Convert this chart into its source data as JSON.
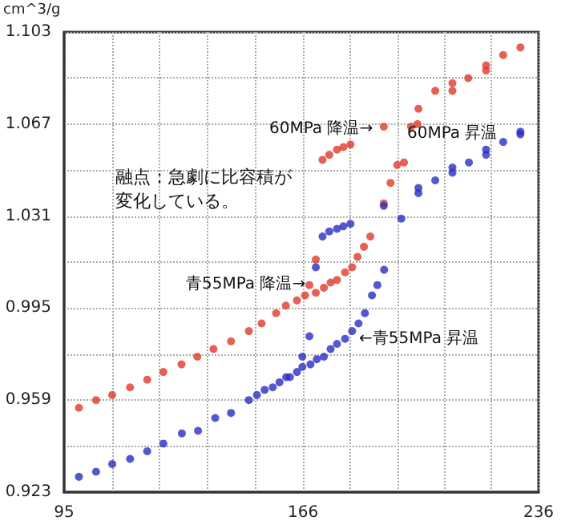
{
  "chart_data": {
    "type": "scatter",
    "ylabel": "cm^3/g",
    "series": [
      {
        "color": "#e03a2a",
        "x": [
          99.4,
          104.5,
          109.3,
          114.6,
          119.7,
          124.5,
          129.9,
          134.6,
          139.4,
          144.6,
          149.9,
          153.7,
          158,
          160.9,
          164.2,
          166.6,
          169.8,
          172.2,
          174.2,
          176.1,
          178.5,
          180.6,
          182.2,
          184.1,
          186,
          190,
          192,
          194,
          196,
          198.1,
          200,
          200.3,
          205.3,
          210.4,
          210.4,
          215.1,
          220.4,
          220.4,
          225.5,
          230.6,
          167.9,
          169.8,
          171.8,
          173.8,
          176.1,
          178,
          180.1,
          190
        ],
        "values": [
          0.956,
          0.959,
          0.961,
          0.964,
          0.967,
          0.97,
          0.973,
          0.976,
          0.979,
          0.982,
          0.986,
          0.989,
          0.993,
          0.996,
          0.998,
          1,
          1.001,
          1.003,
          1.005,
          1.006,
          1.009,
          1.011,
          1.015,
          1.019,
          1.023,
          1.036,
          1.044,
          1.051,
          1.052,
          1.066,
          1.067,
          1.073,
          1.08,
          1.08,
          1.083,
          1.085,
          1.088,
          1.09,
          1.094,
          1.097,
          1.004,
          1.014,
          1.053,
          1.055,
          1.057,
          1.058,
          1.059,
          1.066
        ]
      },
      {
        "color": "#2a2ec0",
        "x": [
          99.4,
          104.5,
          109.3,
          114.6,
          119.7,
          124.5,
          130,
          134.8,
          139.9,
          144.6,
          149.9,
          152.3,
          154.6,
          157,
          159,
          161,
          162.1,
          164.2,
          165.8,
          168.2,
          170.1,
          172.2,
          174.2,
          176.1,
          178.5,
          180.6,
          182.5,
          184.4,
          186.5,
          188.1,
          190.1,
          195.2,
          200.3,
          200.3,
          205.3,
          210.4,
          210.4,
          215.3,
          220.4,
          220.4,
          225.5,
          230.6,
          230.6,
          165.8,
          167.9,
          169.8,
          171.8,
          173.8,
          176.1,
          178,
          180.1,
          190
        ],
        "values": [
          0.929,
          0.931,
          0.934,
          0.936,
          0.939,
          0.942,
          0.946,
          0.947,
          0.952,
          0.954,
          0.959,
          0.961,
          0.963,
          0.964,
          0.966,
          0.968,
          0.968,
          0.97,
          0.972,
          0.973,
          0.975,
          0.976,
          0.979,
          0.981,
          0.983,
          0.986,
          0.989,
          0.993,
          1,
          1.004,
          1.01,
          1.03,
          1.042,
          1.04,
          1.045,
          1.05,
          1.048,
          1.052,
          1.057,
          1.055,
          1.06,
          1.063,
          1.064,
          0.976,
          0.984,
          1.011,
          1.023,
          1.025,
          1.026,
          1.027,
          1.028,
          1.035
        ]
      }
    ],
    "xlim": [
      95,
      236
    ],
    "xticks": [
      95,
      {
        "value": 109.2,
        "label": null
      },
      {
        "value": 123.4,
        "label": null
      },
      {
        "value": 137.6,
        "label": null
      },
      {
        "value": 151.8,
        "label": null
      },
      166,
      {
        "value": 180,
        "label": null
      },
      {
        "value": 194,
        "label": null
      },
      {
        "value": 208,
        "label": null
      },
      {
        "value": 222,
        "label": null
      },
      236
    ],
    "ylim": [
      0.923,
      1.103
    ],
    "yticks": [
      0.923,
      {
        "value": 0.941,
        "label": null
      },
      0.959,
      {
        "value": 0.977,
        "label": null
      },
      0.995,
      {
        "value": 1.013,
        "label": null
      },
      1.031,
      {
        "value": 1.049,
        "label": null
      },
      1.067,
      {
        "value": 1.085,
        "label": null
      },
      1.103
    ],
    "grid": true,
    "marker": "circle",
    "annotations": [
      "60MPa 降温→",
      "60MPa 昇温",
      "融点：急劇に比容積が変化している。",
      "青55MPa 降温→",
      "←青55MPa 昇温"
    ]
  }
}
